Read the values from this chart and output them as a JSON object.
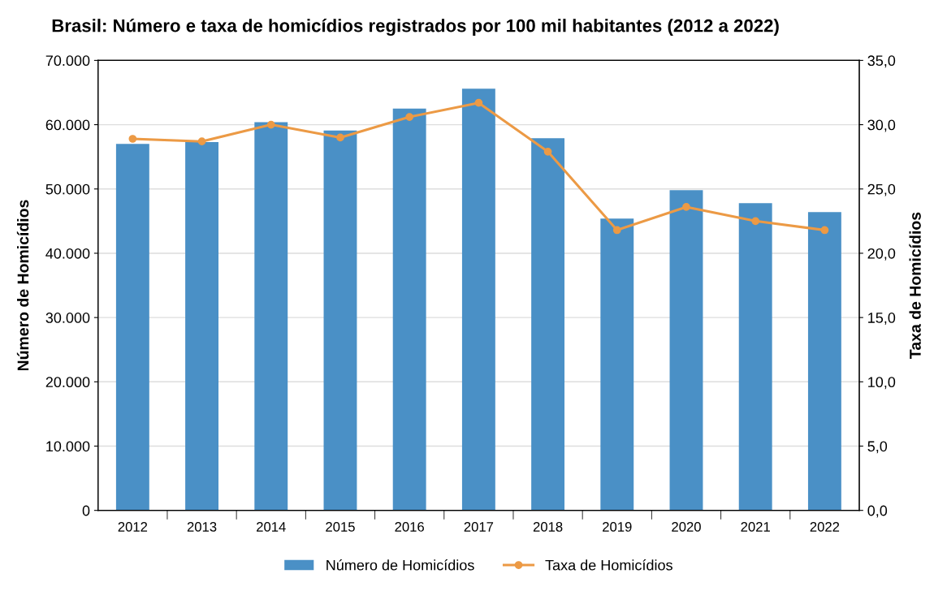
{
  "chart_data": {
    "type": "bar",
    "title": "Brasil: Número e taxa de homicídios registrados por 100 mil habitantes (2012 a 2022)",
    "ylabel": "Número de Homicídios",
    "y2label": "Taxa de Homicídios",
    "categories": [
      "2012",
      "2013",
      "2014",
      "2015",
      "2016",
      "2017",
      "2018",
      "2019",
      "2020",
      "2021",
      "2022"
    ],
    "series": [
      {
        "name": "Número de Homicídios",
        "color": "#4a90c6",
        "values": [
          57000,
          57300,
          60400,
          59100,
          62500,
          65600,
          57900,
          45400,
          49800,
          47800,
          46400
        ]
      },
      {
        "name": "Taxa de Homicídios",
        "type": "line",
        "axis": "y2",
        "color": "#ec9a45",
        "marker": "circle",
        "values": [
          28.9,
          28.7,
          30.0,
          29.0,
          30.6,
          31.7,
          27.9,
          21.8,
          23.6,
          22.5,
          21.8
        ]
      }
    ],
    "ylim": [
      0,
      70000
    ],
    "yticks": [
      {
        "value": 0,
        "label": "0"
      },
      {
        "value": 10000,
        "label": "10.000"
      },
      {
        "value": 20000,
        "label": "20.000"
      },
      {
        "value": 30000,
        "label": "30.000"
      },
      {
        "value": 40000,
        "label": "40.000"
      },
      {
        "value": 50000,
        "label": "50.000"
      },
      {
        "value": 60000,
        "label": "60.000"
      },
      {
        "value": 70000,
        "label": "70.000"
      }
    ],
    "y2lim": [
      0,
      35
    ],
    "y2ticks": [
      {
        "value": 0,
        "label": "0,0"
      },
      {
        "value": 5,
        "label": "5,0"
      },
      {
        "value": 10,
        "label": "10,0"
      },
      {
        "value": 15,
        "label": "15,0"
      },
      {
        "value": 20,
        "label": "20,0"
      },
      {
        "value": 25,
        "label": "25,0"
      },
      {
        "value": 30,
        "label": "30,0"
      },
      {
        "value": 35,
        "label": "35,0"
      }
    ],
    "grid": "y",
    "legend": "bottom"
  }
}
